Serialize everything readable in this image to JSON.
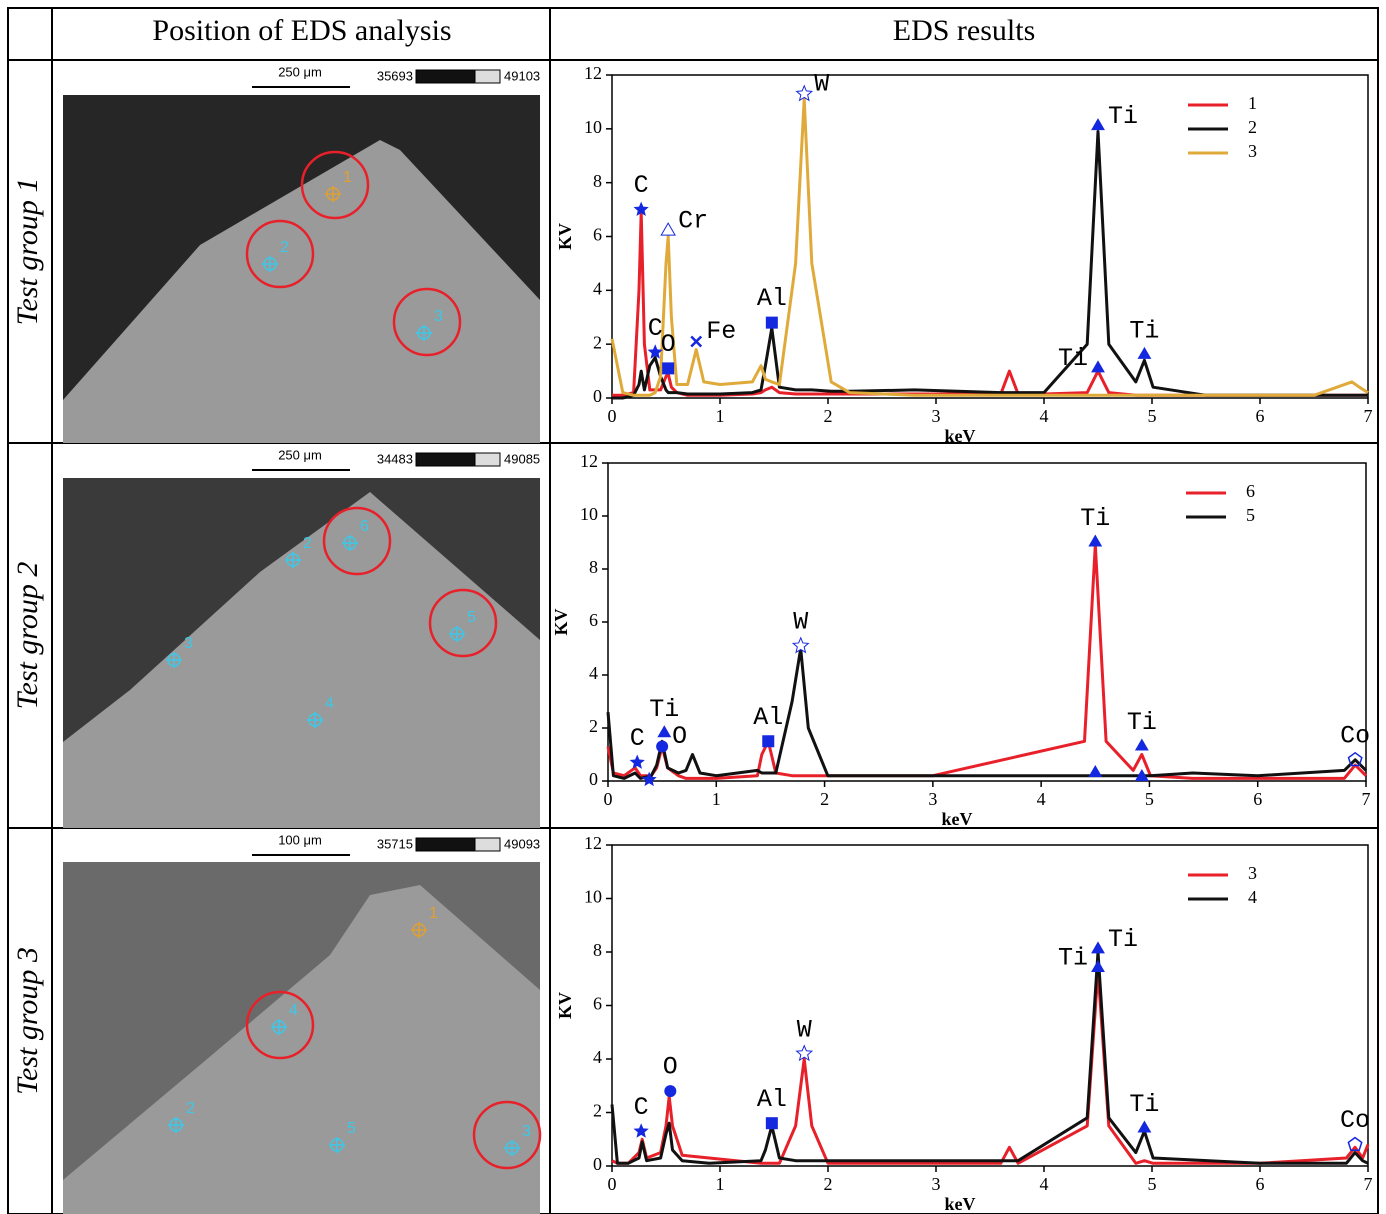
{
  "table": {
    "header": [
      "Position of EDS analysis",
      "EDS results"
    ],
    "rows": [
      {
        "label": "Test group 1",
        "scale": "250 μm",
        "range_low": "35693",
        "range_high": "49103",
        "points": [
          "1",
          "2",
          "3"
        ]
      },
      {
        "label": "Test group 2",
        "scale": "250 μm",
        "range_low": "34483",
        "range_high": "49085",
        "points": [
          "6",
          "2",
          "3",
          "4",
          "5"
        ]
      },
      {
        "label": "Test group 3",
        "scale": "100 μm",
        "range_low": "35715",
        "range_high": "49093",
        "points": [
          "1",
          "4",
          "2",
          "5",
          "3"
        ]
      }
    ]
  },
  "chart_data": [
    {
      "type": "line",
      "xlabel": "keV",
      "ylabel": "KV",
      "xlim": [
        0,
        7
      ],
      "ylim": [
        0,
        12
      ],
      "xticks": [
        0,
        1,
        2,
        3,
        4,
        5,
        6,
        7
      ],
      "yticks": [
        0,
        2,
        4,
        6,
        8,
        10,
        12
      ],
      "legend": "upper right",
      "x": [
        0,
        0.1,
        0.2,
        0.25,
        0.27,
        0.3,
        0.35,
        0.4,
        0.45,
        0.5,
        0.52,
        0.55,
        0.6,
        0.7,
        0.78,
        0.85,
        1.0,
        1.3,
        1.38,
        1.42,
        1.48,
        1.55,
        1.7,
        1.78,
        1.85,
        2.03,
        2.2,
        2.8,
        3.6,
        3.68,
        3.76,
        4.0,
        4.4,
        4.5,
        4.6,
        4.85,
        4.93,
        5.01,
        5.5,
        6.5,
        6.85,
        6.92,
        7
      ],
      "series": [
        {
          "name": "1",
          "color": "#e8202a",
          "values": [
            0.1,
            0.1,
            0.2,
            4,
            6.9,
            2,
            0.3,
            0.3,
            0.3,
            0.8,
            0.9,
            0.4,
            0.2,
            0.1,
            0.1,
            0.1,
            0.1,
            0.15,
            0.2,
            0.3,
            0.4,
            0.2,
            0.15,
            0.15,
            0.15,
            0.15,
            0.15,
            0.15,
            0.15,
            1.0,
            0.15,
            0.15,
            0.2,
            1.0,
            0.2,
            0.1,
            0.1,
            0.1,
            0.1,
            0.1,
            0.1,
            0.1,
            0.1
          ]
        },
        {
          "name": "2",
          "color": "#111111",
          "values": [
            0,
            0,
            0.1,
            0.5,
            1.0,
            0.3,
            1.2,
            1.5,
            0.8,
            0.3,
            0.2,
            0.2,
            0.2,
            0.15,
            0.15,
            0.15,
            0.15,
            0.2,
            0.3,
            1.2,
            2.6,
            0.4,
            0.3,
            0.3,
            0.3,
            0.25,
            0.25,
            0.3,
            0.2,
            0.2,
            0.2,
            0.2,
            2,
            9.9,
            2,
            0.6,
            1.4,
            0.4,
            0.1,
            0.1,
            0.1,
            0.1,
            0.1
          ]
        },
        {
          "name": "3",
          "color": "#e0aa3a",
          "values": [
            2.2,
            0.2,
            0.1,
            0.1,
            0.1,
            0.1,
            0.1,
            0.2,
            0.8,
            5,
            6.0,
            3,
            0.5,
            0.5,
            1.8,
            0.6,
            0.5,
            0.6,
            1.2,
            0.7,
            0.6,
            0.5,
            5,
            11.1,
            5,
            0.6,
            0.2,
            0.1,
            0.1,
            0.1,
            0.1,
            0.1,
            0.1,
            0.1,
            0.1,
            0.1,
            0.1,
            0.1,
            0.1,
            0.1,
            0.6,
            0.4,
            0.2
          ]
        }
      ],
      "annotations": [
        {
          "text": "C",
          "x": 0.27,
          "y": 7.0,
          "marker": "star",
          "side": "above"
        },
        {
          "text": "Cr",
          "x": 0.52,
          "y": 6.2,
          "marker": "otriangle",
          "side": "right"
        },
        {
          "text": "C",
          "x": 0.4,
          "y": 1.7,
          "marker": "star",
          "side": "above"
        },
        {
          "text": "O",
          "x": 0.52,
          "y": 1.1,
          "marker": "square",
          "side": "above"
        },
        {
          "text": "Fe",
          "x": 0.78,
          "y": 2.1,
          "marker": "x",
          "side": "right"
        },
        {
          "text": "Al",
          "x": 1.48,
          "y": 2.8,
          "marker": "square",
          "side": "above"
        },
        {
          "text": "W",
          "x": 1.78,
          "y": 11.3,
          "marker": "ostar",
          "side": "right"
        },
        {
          "text": "Ti",
          "x": 4.5,
          "y": 10.1,
          "marker": "triangle",
          "side": "right"
        },
        {
          "text": "Ti",
          "x": 4.5,
          "y": 1.1,
          "marker": "triangle",
          "side": "left"
        },
        {
          "text": "Ti",
          "x": 4.93,
          "y": 1.6,
          "marker": "triangle",
          "side": "above"
        }
      ]
    },
    {
      "type": "line",
      "xlabel": "keV",
      "ylabel": "KV",
      "xlim": [
        0,
        7
      ],
      "ylim": [
        0,
        12
      ],
      "xticks": [
        0,
        1,
        2,
        3,
        4,
        5,
        6,
        7
      ],
      "yticks": [
        0,
        2,
        4,
        6,
        8,
        10,
        12
      ],
      "legend": "upper right",
      "x": [
        0,
        0.05,
        0.15,
        0.25,
        0.3,
        0.4,
        0.45,
        0.5,
        0.55,
        0.65,
        0.72,
        0.78,
        0.85,
        1.0,
        1.38,
        1.42,
        1.48,
        1.55,
        1.7,
        1.78,
        1.85,
        2.03,
        2.2,
        3.0,
        4.4,
        4.5,
        4.6,
        4.85,
        4.93,
        5.01,
        5.4,
        6.0,
        6.8,
        6.9,
        7
      ],
      "series": [
        {
          "name": "6",
          "color": "#e8202a",
          "values": [
            1.3,
            0.3,
            0.2,
            0.5,
            0.2,
            0.2,
            0.5,
            1.3,
            0.5,
            0.2,
            0.1,
            0.1,
            0.1,
            0.1,
            0.2,
            1.0,
            1.5,
            0.3,
            0.2,
            0.2,
            0.2,
            0.2,
            0.2,
            0.2,
            1.5,
            8.9,
            1.5,
            0.4,
            1.0,
            0.2,
            0.1,
            0.1,
            0.1,
            0.6,
            0.2
          ]
        },
        {
          "name": "5",
          "color": "#111111",
          "values": [
            2.6,
            0.2,
            0.1,
            0.3,
            0.1,
            0.2,
            0.6,
            1.5,
            0.5,
            0.3,
            0.4,
            1.0,
            0.3,
            0.2,
            0.4,
            0.3,
            0.3,
            0.3,
            3,
            5.0,
            2,
            0.2,
            0.2,
            0.2,
            0.2,
            0.2,
            0.2,
            0.2,
            0.2,
            0.2,
            0.3,
            0.2,
            0.4,
            0.8,
            0.4
          ]
        }
      ],
      "annotations": [
        {
          "text": "C",
          "x": 0.27,
          "y": 0.7,
          "marker": "star",
          "side": "above"
        },
        {
          "x": 0.38,
          "y": 0.05,
          "marker": "star"
        },
        {
          "text": "Ti",
          "x": 0.52,
          "y": 1.8,
          "marker": "triangle",
          "side": "above"
        },
        {
          "text": "O",
          "x": 0.5,
          "y": 1.3,
          "marker": "circle",
          "side": "right"
        },
        {
          "text": "Al",
          "x": 1.48,
          "y": 1.5,
          "marker": "square",
          "side": "above"
        },
        {
          "text": "W",
          "x": 1.78,
          "y": 5.1,
          "marker": "ostar",
          "side": "above"
        },
        {
          "text": "Ti",
          "x": 4.5,
          "y": 9.0,
          "marker": "triangle",
          "side": "above"
        },
        {
          "x": 4.5,
          "y": 0.3,
          "marker": "triangle"
        },
        {
          "text": "Ti",
          "x": 4.93,
          "y": 1.3,
          "marker": "triangle",
          "side": "above"
        },
        {
          "x": 4.93,
          "y": 0.15,
          "marker": "triangle"
        },
        {
          "text": "Co",
          "x": 6.9,
          "y": 0.8,
          "marker": "pentagon",
          "side": "above"
        }
      ]
    },
    {
      "type": "line",
      "xlabel": "keV",
      "ylabel": "KV",
      "xlim": [
        0,
        7
      ],
      "ylim": [
        0,
        12
      ],
      "xticks": [
        0,
        1,
        2,
        3,
        4,
        5,
        6,
        7
      ],
      "yticks": [
        0,
        2,
        4,
        6,
        8,
        10,
        12
      ],
      "legend": "upper right",
      "x": [
        0,
        0.05,
        0.15,
        0.25,
        0.28,
        0.32,
        0.45,
        0.5,
        0.53,
        0.56,
        0.65,
        0.9,
        1.38,
        1.42,
        1.48,
        1.55,
        1.7,
        1.78,
        1.85,
        2.0,
        3.6,
        3.68,
        3.76,
        4.4,
        4.5,
        4.6,
        4.85,
        4.93,
        5.01,
        6.0,
        6.8,
        6.88,
        6.95,
        7
      ],
      "series": [
        {
          "name": "3",
          "color": "#e8202a",
          "values": [
            0.2,
            0.1,
            0.1,
            0.5,
            1.0,
            0.3,
            0.5,
            1.5,
            2.6,
            1.5,
            0.4,
            0.3,
            0.1,
            0.1,
            0.1,
            0.1,
            1.5,
            4.0,
            1.5,
            0.1,
            0.1,
            0.7,
            0.1,
            1.5,
            7.3,
            1.5,
            0.1,
            0.2,
            0.1,
            0.1,
            0.3,
            0.7,
            0.3,
            0.8
          ]
        },
        {
          "name": "4",
          "color": "#111111",
          "values": [
            2.3,
            0.1,
            0.1,
            0.3,
            0.9,
            0.2,
            0.3,
            1.2,
            1.6,
            0.6,
            0.2,
            0.1,
            0.2,
            0.6,
            1.5,
            0.3,
            0.2,
            0.2,
            0.2,
            0.2,
            0.2,
            0.2,
            0.2,
            1.8,
            8.0,
            1.8,
            0.5,
            1.3,
            0.3,
            0.1,
            0.1,
            0.5,
            0.2,
            0.1
          ]
        }
      ],
      "annotations": [
        {
          "text": "C",
          "x": 0.27,
          "y": 1.3,
          "marker": "star",
          "side": "above"
        },
        {
          "text": "O",
          "x": 0.54,
          "y": 2.8,
          "marker": "circle",
          "side": "above"
        },
        {
          "text": "Al",
          "x": 1.48,
          "y": 1.6,
          "marker": "square",
          "side": "above"
        },
        {
          "text": "W",
          "x": 1.78,
          "y": 4.2,
          "marker": "ostar",
          "side": "above"
        },
        {
          "text": "Ti",
          "x": 4.5,
          "y": 8.1,
          "marker": "triangle",
          "side": "right"
        },
        {
          "text": "Ti",
          "x": 4.5,
          "y": 7.4,
          "marker": "triangle",
          "side": "left"
        },
        {
          "text": "Ti",
          "x": 4.93,
          "y": 1.4,
          "marker": "triangle",
          "side": "above"
        },
        {
          "text": "Co",
          "x": 6.88,
          "y": 0.8,
          "marker": "pentagon",
          "side": "above"
        }
      ]
    }
  ]
}
